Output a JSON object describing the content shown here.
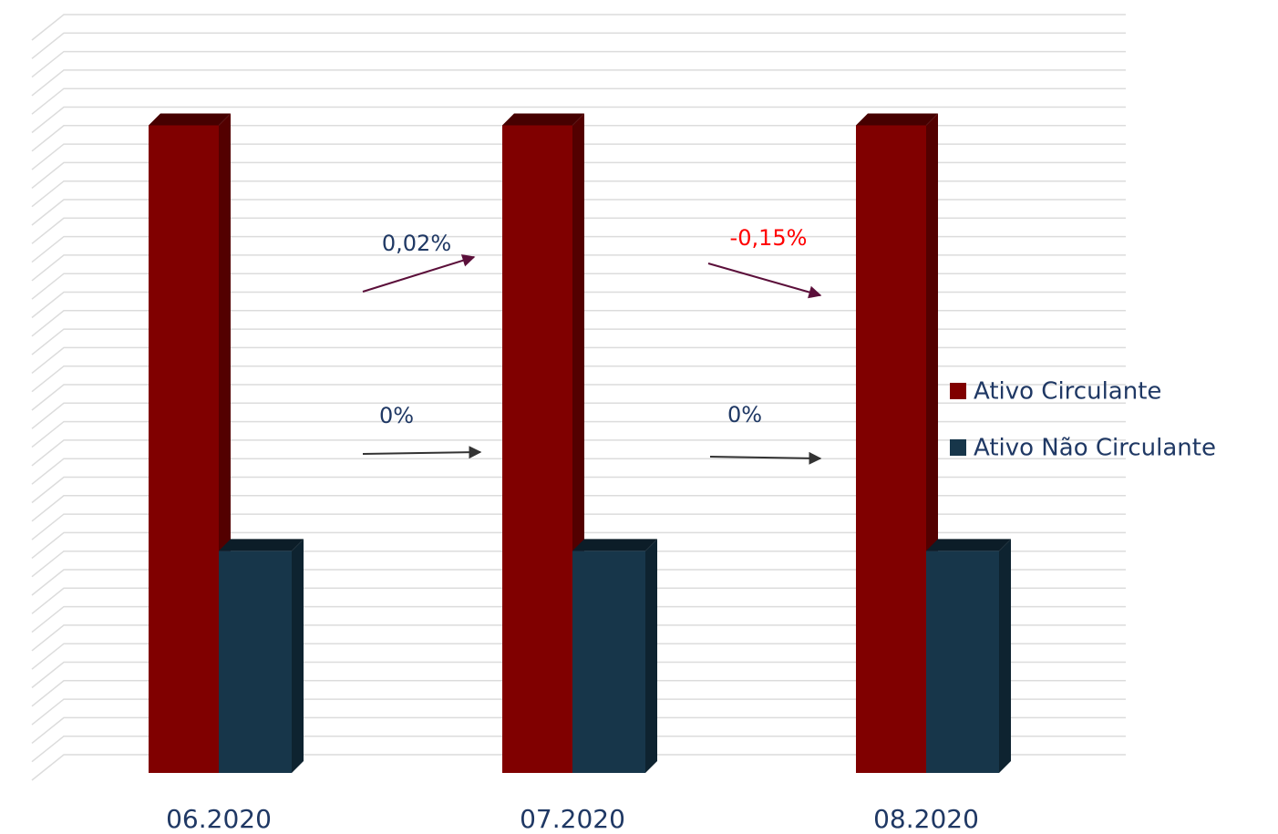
{
  "chart_data": {
    "type": "bar3d",
    "categories": [
      "06.2020",
      "07.2020",
      "08.2020"
    ],
    "series": [
      {
        "name": "Ativo Circulante",
        "color": "#800000",
        "values": [
          35,
          35,
          35
        ]
      },
      {
        "name": "Ativo Não Circulante",
        "color": "#17364a",
        "values": [
          12,
          12,
          12
        ]
      }
    ],
    "ylim": [
      0,
      40
    ],
    "yticks": [
      0,
      1,
      2,
      3,
      4,
      5,
      6,
      7,
      8,
      9,
      10,
      11,
      12,
      13,
      14,
      15,
      16,
      17,
      18,
      19,
      20,
      21,
      22,
      23,
      24,
      25,
      26,
      27,
      28,
      29,
      30,
      31,
      32,
      33,
      34,
      35,
      36,
      37,
      38,
      39,
      40
    ],
    "grid": true,
    "legend": "right",
    "annotations": [
      {
        "text": "0,02%",
        "color": "#1f3864"
      },
      {
        "text": "-0,15%",
        "color": "#ff0000"
      },
      {
        "text": "0%",
        "color": "#1f3864"
      },
      {
        "text": "0%",
        "color": "#1f3864"
      }
    ]
  }
}
